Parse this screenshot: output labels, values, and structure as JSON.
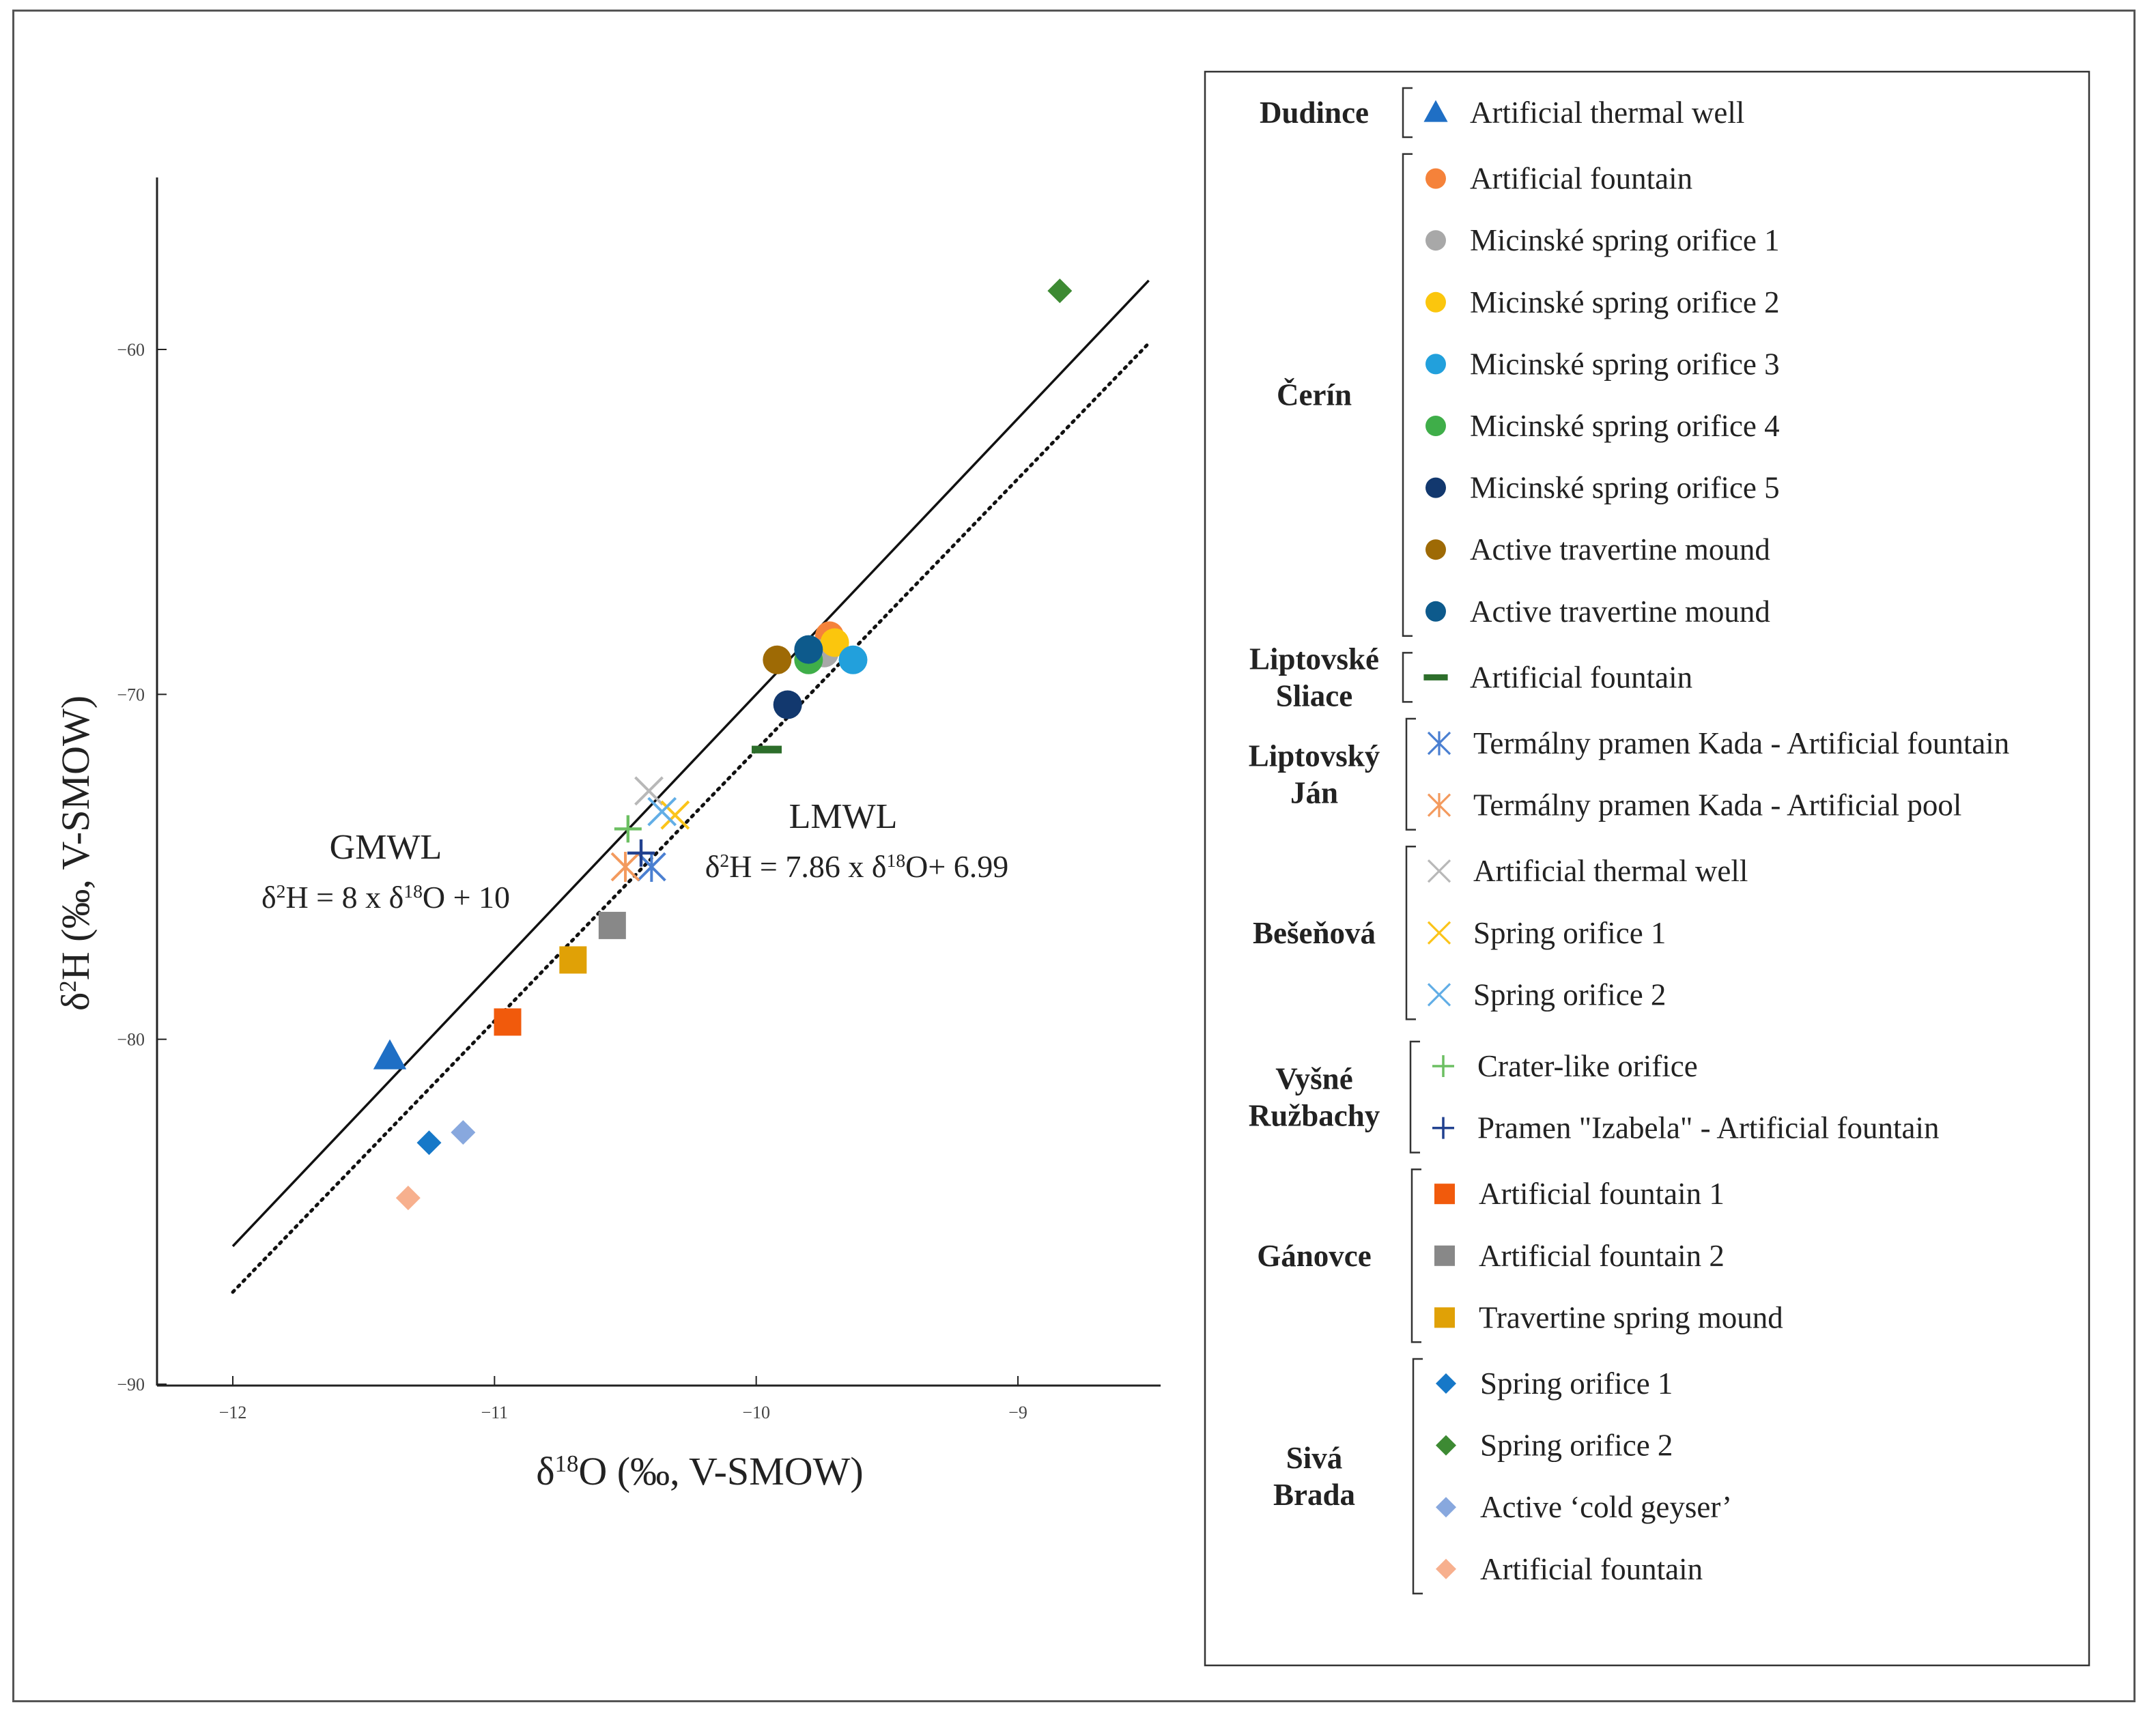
{
  "chart_data": {
    "type": "scatter",
    "xlabel": "δ18O (‰, V-SMOW)",
    "ylabel": "δ2H (‰, V-SMOW)",
    "xlim": [
      -12.3,
      -8.5
    ],
    "ylim": [
      -90,
      -55
    ],
    "xticks": [
      {
        "value": -12,
        "label": "−12"
      },
      {
        "value": -11,
        "label": "−11"
      },
      {
        "value": -10,
        "label": "−10"
      },
      {
        "value": -9,
        "label": "−9"
      }
    ],
    "yticks": [
      {
        "value": -60,
        "label": "−60"
      },
      {
        "value": -70,
        "label": "−70"
      },
      {
        "value": -80,
        "label": "−80"
      },
      {
        "value": -90,
        "label": "−90"
      }
    ],
    "lines": [
      {
        "name": "GMWL",
        "style": "solid",
        "slope": 8,
        "intercept": 10,
        "x_range": [
          -12,
          -8.5
        ],
        "title": "GMWL",
        "equation": "δ2H = 8 x δ18O + 10"
      },
      {
        "name": "LMWL",
        "style": "dotted",
        "slope": 7.86,
        "intercept": 6.99,
        "x_range": [
          -12,
          -8.5
        ],
        "title": "LMWL",
        "equation": "δ2H = 7.86 x δ18O+ 6.99"
      }
    ],
    "series": [
      {
        "site": "Dudince",
        "name": "Artificial thermal well",
        "marker": "triangle",
        "color": "#1f6fc5",
        "points": [
          {
            "x": -11.4,
            "y": -80.5
          }
        ]
      },
      {
        "site": "Čerín",
        "name": "Artificial fountain",
        "marker": "circle",
        "color": "#f5823a",
        "points": [
          {
            "x": -9.72,
            "y": -68.3
          }
        ]
      },
      {
        "site": "Čerín",
        "name": "Micinské spring orifice 1",
        "marker": "circle",
        "color": "#a8a8a8",
        "points": [
          {
            "x": -9.74,
            "y": -68.8
          }
        ]
      },
      {
        "site": "Čerín",
        "name": "Micinské spring orifice 2",
        "marker": "circle",
        "color": "#fbc60d",
        "points": [
          {
            "x": -9.7,
            "y": -68.5
          }
        ]
      },
      {
        "site": "Čerín",
        "name": "Micinské spring orifice 3",
        "marker": "circle",
        "color": "#22a0dc",
        "points": [
          {
            "x": -9.63,
            "y": -69.0
          }
        ]
      },
      {
        "site": "Čerín",
        "name": "Micinské spring orifice 4",
        "marker": "circle",
        "color": "#3fae49",
        "points": [
          {
            "x": -9.8,
            "y": -69.0
          }
        ]
      },
      {
        "site": "Čerín",
        "name": "Micinské spring orifice 5",
        "marker": "circle",
        "color": "#12386e",
        "points": [
          {
            "x": -9.88,
            "y": -70.3
          }
        ]
      },
      {
        "site": "Čerín",
        "name": "Active  travertine mound",
        "marker": "circle",
        "color": "#9e6a05",
        "points": [
          {
            "x": -9.92,
            "y": -69.0
          }
        ]
      },
      {
        "site": "Čerín",
        "name": "Active  travertine mound",
        "marker": "circle",
        "color": "#0d5a8c",
        "points": [
          {
            "x": -9.8,
            "y": -68.7
          }
        ]
      },
      {
        "site": "Liptovské Sliace",
        "name": "Artificial fountain",
        "marker": "dash",
        "color": "#2d6e2b",
        "points": [
          {
            "x": -9.96,
            "y": -71.6
          }
        ]
      },
      {
        "site": "Liptovský Ján",
        "name": "Termálny pramen Kada - Artificial fountain",
        "marker": "asterisk",
        "color": "#4a7fd1",
        "points": [
          {
            "x": -10.4,
            "y": -75.0
          }
        ]
      },
      {
        "site": "Liptovský Ján",
        "name": "Termálny pramen Kada - Artificial pool",
        "marker": "asterisk",
        "color": "#f39a5e",
        "points": [
          {
            "x": -10.5,
            "y": -75.0
          }
        ]
      },
      {
        "site": "Bešeňová",
        "name": "Artificial thermal well",
        "marker": "x",
        "color": "#b8b8b8",
        "points": [
          {
            "x": -10.41,
            "y": -72.8
          }
        ]
      },
      {
        "site": "Bešeňová",
        "name": "Spring orifice 1",
        "marker": "x",
        "color": "#fbc41a",
        "points": [
          {
            "x": -10.31,
            "y": -73.5
          }
        ]
      },
      {
        "site": "Bešeňová",
        "name": "Spring orifice 2",
        "marker": "x",
        "color": "#62aee6",
        "points": [
          {
            "x": -10.36,
            "y": -73.4
          }
        ]
      },
      {
        "site": "Vyšné Ružbachy",
        "name": "Crater-like orifice",
        "marker": "plus",
        "color": "#6cbf62",
        "points": [
          {
            "x": -10.49,
            "y": -73.9
          }
        ]
      },
      {
        "site": "Vyšné Ružbachy",
        "name": "Pramen \"Izabela\" - Artificial fountain",
        "marker": "plus",
        "color": "#21418f",
        "points": [
          {
            "x": -10.44,
            "y": -74.6
          }
        ]
      },
      {
        "site": "Gánovce",
        "name": "Artificial fountain 1",
        "marker": "square",
        "color": "#f15a0c",
        "points": [
          {
            "x": -10.95,
            "y": -79.5
          }
        ]
      },
      {
        "site": "Gánovce",
        "name": "Artificial fountain 2",
        "marker": "square",
        "color": "#888888",
        "points": [
          {
            "x": -10.55,
            "y": -76.7
          }
        ]
      },
      {
        "site": "Gánovce",
        "name": "Travertine spring mound",
        "marker": "square",
        "color": "#e0a106",
        "points": [
          {
            "x": -10.7,
            "y": -77.7
          }
        ]
      },
      {
        "site": "Sivá Brada",
        "name": "Spring orifice 1",
        "marker": "diamond",
        "color": "#1678c8",
        "points": [
          {
            "x": -11.25,
            "y": -83.0
          }
        ]
      },
      {
        "site": "Sivá Brada",
        "name": "Spring orifice 2",
        "marker": "diamond",
        "color": "#3d8a33",
        "points": [
          {
            "x": -8.84,
            "y": -58.3
          }
        ]
      },
      {
        "site": "Sivá Brada",
        "name": "Active ‘cold geyser’",
        "marker": "diamond",
        "color": "#88a8de",
        "points": [
          {
            "x": -11.12,
            "y": -82.7
          }
        ]
      },
      {
        "site": "Sivá Brada",
        "name": "Artificial fountain",
        "marker": "diamond",
        "color": "#f7b08e",
        "points": [
          {
            "x": -11.33,
            "y": -84.6
          }
        ]
      }
    ],
    "legend": {
      "placement": "right",
      "groups": [
        {
          "label_lines": [
            "Dudince"
          ],
          "entries": [
            0
          ]
        },
        {
          "label_lines": [
            "Čerín"
          ],
          "entries": [
            1,
            2,
            3,
            4,
            5,
            6,
            7,
            8
          ]
        },
        {
          "label_lines": [
            "Liptovské",
            "Sliace"
          ],
          "entries": [
            9
          ]
        },
        {
          "label_lines": [
            "Liptovský",
            "Ján"
          ],
          "entries": [
            10,
            11
          ]
        },
        {
          "label_lines": [
            "Bešeňová"
          ],
          "entries": [
            12,
            13,
            14
          ]
        },
        {
          "label_lines": [
            "Vyšné",
            "Ružbachy"
          ],
          "entries": [
            15,
            16
          ]
        },
        {
          "label_lines": [
            "Gánovce"
          ],
          "entries": [
            17,
            18,
            19
          ]
        },
        {
          "label_lines": [
            "Sivá",
            "Brada"
          ],
          "entries": [
            20,
            21,
            22,
            23
          ]
        }
      ]
    }
  }
}
